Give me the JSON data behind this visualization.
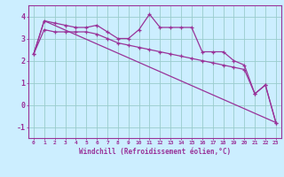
{
  "xlabel": "Windchill (Refroidissement éolien,°C)",
  "bg_color": "#cceeff",
  "line_color": "#993399",
  "grid_color": "#99cccc",
  "yticks": [
    -1,
    0,
    1,
    2,
    3,
    4
  ],
  "xticks": [
    0,
    1,
    2,
    3,
    4,
    5,
    6,
    7,
    8,
    9,
    10,
    11,
    12,
    13,
    14,
    15,
    16,
    17,
    18,
    19,
    20,
    21,
    22,
    23
  ],
  "ylim": [
    -1.5,
    4.5
  ],
  "xlim": [
    -0.5,
    23.5
  ],
  "series1_x": [
    0,
    1,
    2,
    3,
    4,
    5,
    6,
    7,
    8,
    9,
    10,
    11,
    12,
    13,
    14,
    15,
    16,
    17,
    18,
    19,
    20,
    21,
    22,
    23
  ],
  "series1_y": [
    2.3,
    3.8,
    3.7,
    3.6,
    3.5,
    3.5,
    3.6,
    3.3,
    3.0,
    3.0,
    3.4,
    4.1,
    3.5,
    3.5,
    3.5,
    3.5,
    2.4,
    2.4,
    2.4,
    2.0,
    1.8,
    0.5,
    0.9,
    -0.8
  ],
  "series2_x": [
    0,
    1,
    2,
    3,
    4,
    5,
    6,
    7,
    8,
    9,
    10,
    11,
    12,
    13,
    14,
    15,
    16,
    17,
    18,
    19,
    20,
    21,
    22,
    23
  ],
  "series2_y": [
    2.3,
    3.4,
    3.3,
    3.3,
    3.3,
    3.3,
    3.2,
    3.0,
    2.8,
    2.7,
    2.6,
    2.5,
    2.4,
    2.3,
    2.2,
    2.1,
    2.0,
    1.9,
    1.8,
    1.7,
    1.6,
    0.5,
    0.9,
    -0.8
  ],
  "series3_x": [
    0,
    1,
    23
  ],
  "series3_y": [
    2.3,
    3.8,
    -0.8
  ],
  "xlabel_fontsize": 5.5,
  "xtick_fontsize": 4.5,
  "ytick_fontsize": 6.0
}
